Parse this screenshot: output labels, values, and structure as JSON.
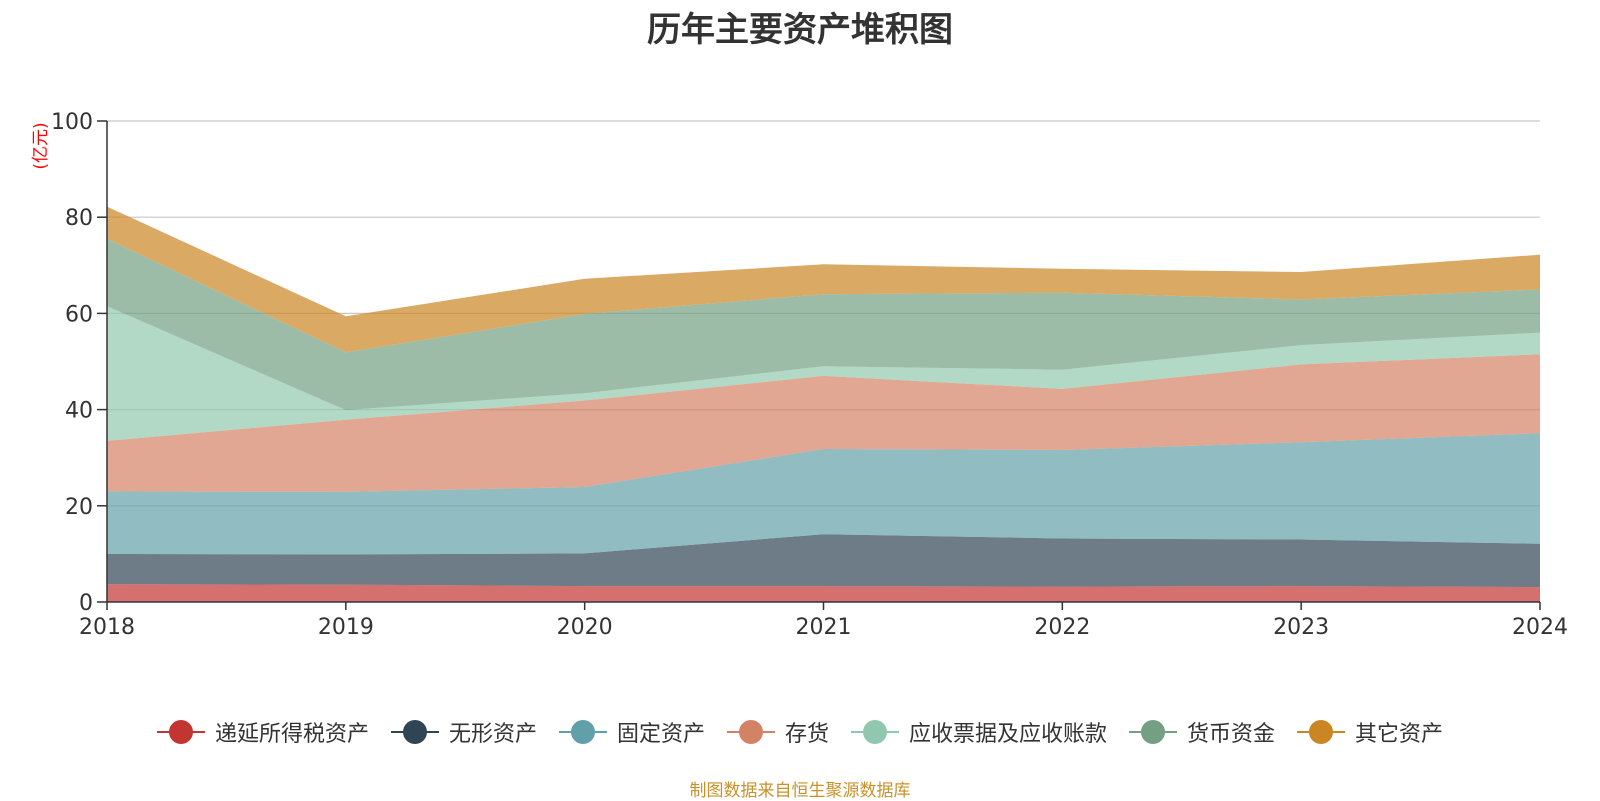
{
  "chart_data": {
    "type": "area",
    "stacked": true,
    "title": "历年主要资产堆积图",
    "ylabel": "(亿元)",
    "xlabel": "",
    "categories": [
      "2018",
      "2019",
      "2020",
      "2021",
      "2022",
      "2023",
      "2024"
    ],
    "ylim": [
      0,
      100
    ],
    "yticks": [
      0,
      20,
      40,
      60,
      80,
      100
    ],
    "grid": true,
    "legend_position": "bottom",
    "series": [
      {
        "name": "递延所得税资产",
        "color": "#c23531",
        "values": [
          3.7,
          3.6,
          3.3,
          3.3,
          3.2,
          3.3,
          3.1
        ]
      },
      {
        "name": "无形资产",
        "color": "#2f4554",
        "values": [
          6.3,
          6.3,
          6.8,
          10.8,
          10.0,
          9.7,
          9.0
        ]
      },
      {
        "name": "固定资产",
        "color": "#61a0a8",
        "values": [
          13.0,
          13.0,
          13.8,
          17.7,
          18.4,
          20.2,
          23.0
        ]
      },
      {
        "name": "存货",
        "color": "#d48265",
        "values": [
          10.5,
          15.0,
          18.0,
          15.2,
          12.7,
          16.2,
          16.4
        ]
      },
      {
        "name": "应收票据及应收账款",
        "color": "#91c7ae",
        "values": [
          28.0,
          2.0,
          1.5,
          2.0,
          4.0,
          4.0,
          4.5
        ]
      },
      {
        "name": "货币资金",
        "color": "#749f83",
        "values": [
          14.0,
          12.0,
          16.5,
          15.0,
          16.0,
          9.5,
          9.0
        ]
      },
      {
        "name": "其它资产",
        "color": "#ca8622",
        "values": [
          6.7,
          7.5,
          7.3,
          6.2,
          5.0,
          5.7,
          7.2
        ]
      }
    ]
  },
  "source_note": "制图数据来自恒生聚源数据库"
}
